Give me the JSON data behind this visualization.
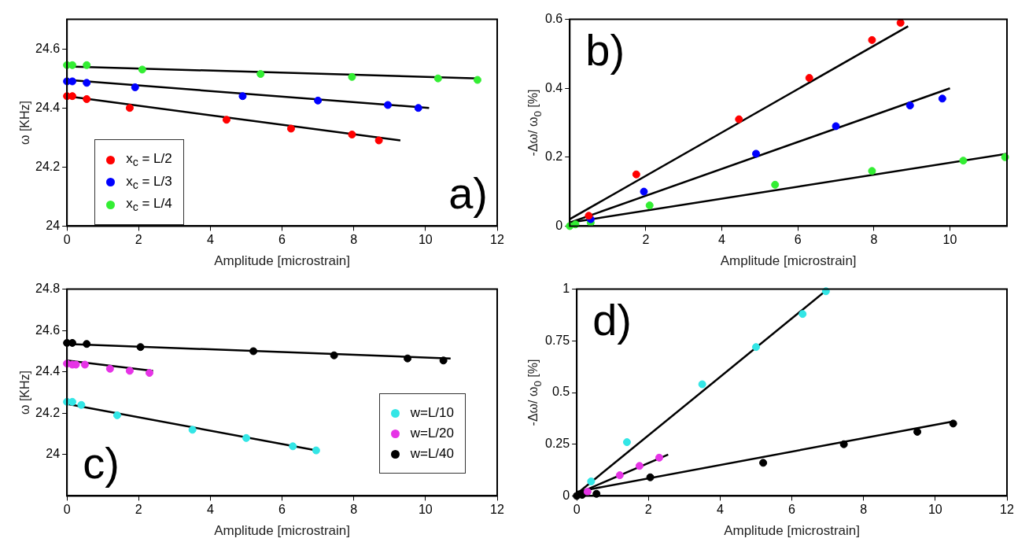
{
  "chart_data": [
    {
      "type": "scatter",
      "xlabel": "Amplitude [microstrain]",
      "ylabel": "ω [KHz]",
      "xlim": [
        0,
        12
      ],
      "xticks": [
        0,
        2,
        4,
        6,
        8,
        10,
        12
      ],
      "ylim": [
        24,
        24.7
      ],
      "yticks": [
        24,
        24.2,
        24.4,
        24.6
      ],
      "grid": false,
      "legend": "bottom left",
      "annotations": [
        "a)"
      ],
      "series": [
        {
          "name": "x$_{c}$ = L/2",
          "color": "#ff0000",
          "marker": "circle",
          "x": [
            0,
            0.15,
            0.55,
            1.75,
            4.45,
            6.25,
            7.95,
            8.7
          ],
          "values": [
            24.44,
            24.44,
            24.43,
            24.4,
            24.36,
            24.33,
            24.31,
            24.29
          ]
        },
        {
          "name": "x$_{c}$ = L/3",
          "color": "#0000ff",
          "marker": "circle",
          "x": [
            0,
            0.15,
            0.55,
            1.9,
            4.9,
            7.0,
            8.95,
            9.8
          ],
          "values": [
            24.49,
            24.49,
            24.485,
            24.47,
            24.44,
            24.425,
            24.41,
            24.4
          ]
        },
        {
          "name": "x$_{c}$ = L/4",
          "color": "#33ee33",
          "marker": "circle",
          "x": [
            0,
            0.15,
            0.55,
            2.1,
            5.4,
            7.95,
            10.35,
            11.45
          ],
          "values": [
            24.545,
            24.545,
            24.545,
            24.53,
            24.515,
            24.505,
            24.5,
            24.495
          ]
        },
        {
          "type": "line",
          "color": "#000000",
          "marker": "none",
          "line_style": "solid",
          "x": [
            0,
            9.3
          ],
          "values": [
            24.44,
            24.29
          ]
        },
        {
          "type": "line",
          "color": "#000000",
          "marker": "none",
          "line_style": "solid",
          "x": [
            0,
            10.1
          ],
          "values": [
            24.495,
            24.4
          ]
        },
        {
          "type": "line",
          "color": "#000000",
          "marker": "none",
          "line_style": "solid",
          "x": [
            0.2,
            11.5
          ],
          "values": [
            24.54,
            24.5
          ]
        }
      ]
    },
    {
      "type": "scatter",
      "xlabel": "Amplitude [microstrain]",
      "ylabel": "-Δω/ ω$_{0}$ [%]",
      "xlim": [
        0,
        11.5
      ],
      "xticks": [
        2,
        4,
        6,
        8,
        10
      ],
      "ylim": [
        0,
        0.6
      ],
      "yticks": [
        0,
        0.2,
        0.4,
        0.6
      ],
      "grid": false,
      "annotations": [
        "b)"
      ],
      "series": [
        {
          "color": "#ff0000",
          "marker": "circle",
          "x": [
            0.5,
            1.75,
            4.45,
            6.3,
            7.95,
            8.7
          ],
          "values": [
            0.03,
            0.15,
            0.31,
            0.43,
            0.54,
            0.59
          ]
        },
        {
          "color": "#0000ff",
          "marker": "circle",
          "x": [
            0.55,
            1.95,
            4.9,
            7.0,
            8.95,
            9.8
          ],
          "values": [
            0.02,
            0.1,
            0.21,
            0.29,
            0.35,
            0.37
          ]
        },
        {
          "color": "#33ee33",
          "marker": "circle",
          "x": [
            0,
            0.15,
            0.55,
            2.1,
            5.4,
            7.95,
            10.35,
            11.45
          ],
          "values": [
            0,
            0.005,
            0.01,
            0.06,
            0.12,
            0.16,
            0.19,
            0.2
          ]
        },
        {
          "type": "line",
          "color": "#000000",
          "marker": "none",
          "line_style": "solid",
          "x": [
            0,
            8.9
          ],
          "values": [
            0.02,
            0.58
          ]
        },
        {
          "type": "line",
          "color": "#000000",
          "marker": "none",
          "line_style": "solid",
          "x": [
            0,
            10
          ],
          "values": [
            0.01,
            0.4
          ]
        },
        {
          "type": "line",
          "color": "#000000",
          "marker": "none",
          "line_style": "solid",
          "x": [
            0,
            11.5
          ],
          "values": [
            0.01,
            0.21
          ]
        }
      ]
    },
    {
      "type": "scatter",
      "xlabel": "Amplitude [microstrain]",
      "ylabel": "ω [KHz]",
      "xlim": [
        0,
        12
      ],
      "xticks": [
        0,
        2,
        4,
        6,
        8,
        10,
        12
      ],
      "ylim": [
        23.8,
        24.8
      ],
      "yticks": [
        24,
        24.2,
        24.4,
        24.6,
        24.8
      ],
      "grid": false,
      "legend": "bottom right",
      "annotations": [
        "c)"
      ],
      "series": [
        {
          "name": "w=L/10",
          "color": "#33e6e6",
          "marker": "circle",
          "x": [
            0,
            0.15,
            0.4,
            1.4,
            3.5,
            5.0,
            6.3,
            6.95
          ],
          "values": [
            24.255,
            24.255,
            24.24,
            24.19,
            24.12,
            24.08,
            24.04,
            24.02
          ]
        },
        {
          "name": "w=L/20",
          "color": "#e633e6",
          "marker": "circle",
          "x": [
            0,
            0.15,
            0.25,
            0.5,
            1.2,
            1.75,
            2.3
          ],
          "values": [
            24.44,
            24.435,
            24.435,
            24.435,
            24.415,
            24.405,
            24.395
          ]
        },
        {
          "name": "w=L/40",
          "color": "#000000",
          "marker": "circle",
          "x": [
            0,
            0.15,
            0.55,
            2.05,
            5.2,
            7.45,
            9.5,
            10.5
          ],
          "values": [
            24.54,
            24.54,
            24.535,
            24.52,
            24.5,
            24.48,
            24.465,
            24.455
          ]
        },
        {
          "type": "line",
          "color": "#000000",
          "marker": "none",
          "line_style": "solid",
          "x": [
            0,
            6.95
          ],
          "values": [
            24.245,
            24.02
          ]
        },
        {
          "type": "line",
          "color": "#000000",
          "marker": "none",
          "line_style": "solid",
          "x": [
            0,
            2.4
          ],
          "values": [
            24.455,
            24.405
          ]
        },
        {
          "type": "line",
          "color": "#000000",
          "marker": "none",
          "line_style": "solid",
          "x": [
            0,
            10.7
          ],
          "values": [
            24.535,
            24.465
          ]
        }
      ]
    },
    {
      "type": "scatter",
      "xlabel": "Amplitude [microstrain]",
      "ylabel": "-Δω/ ω$_{0}$ [%]",
      "xlim": [
        0,
        12
      ],
      "xticks": [
        0,
        2,
        4,
        6,
        8,
        10,
        12
      ],
      "ylim": [
        0,
        1
      ],
      "yticks": [
        0,
        0.25,
        0.5,
        0.75,
        1
      ],
      "grid": false,
      "annotations": [
        "d)"
      ],
      "series": [
        {
          "color": "#33e6e6",
          "marker": "circle",
          "x": [
            0.4,
            1.4,
            3.5,
            5.0,
            6.3,
            6.95
          ],
          "values": [
            0.07,
            0.26,
            0.54,
            0.72,
            0.88,
            0.99
          ]
        },
        {
          "color": "#e633e6",
          "marker": "circle",
          "x": [
            0.3,
            1.2,
            1.75,
            2.3
          ],
          "values": [
            0.02,
            0.1,
            0.145,
            0.185
          ]
        },
        {
          "color": "#000000",
          "marker": "circle",
          "x": [
            0,
            0.15,
            0.55,
            2.05,
            5.2,
            7.45,
            9.5,
            10.5
          ],
          "values": [
            0,
            0.005,
            0.01,
            0.09,
            0.16,
            0.25,
            0.31,
            0.35
          ]
        },
        {
          "type": "line",
          "color": "#000000",
          "marker": "none",
          "line_style": "solid",
          "x": [
            0,
            7.0
          ],
          "values": [
            0.01,
            1.0
          ]
        },
        {
          "type": "line",
          "color": "#000000",
          "marker": "none",
          "line_style": "solid",
          "x": [
            0,
            2.55
          ],
          "values": [
            0.01,
            0.2
          ]
        },
        {
          "type": "line",
          "color": "#000000",
          "marker": "none",
          "line_style": "solid",
          "x": [
            0,
            10.5
          ],
          "values": [
            0.02,
            0.36
          ]
        }
      ]
    }
  ]
}
